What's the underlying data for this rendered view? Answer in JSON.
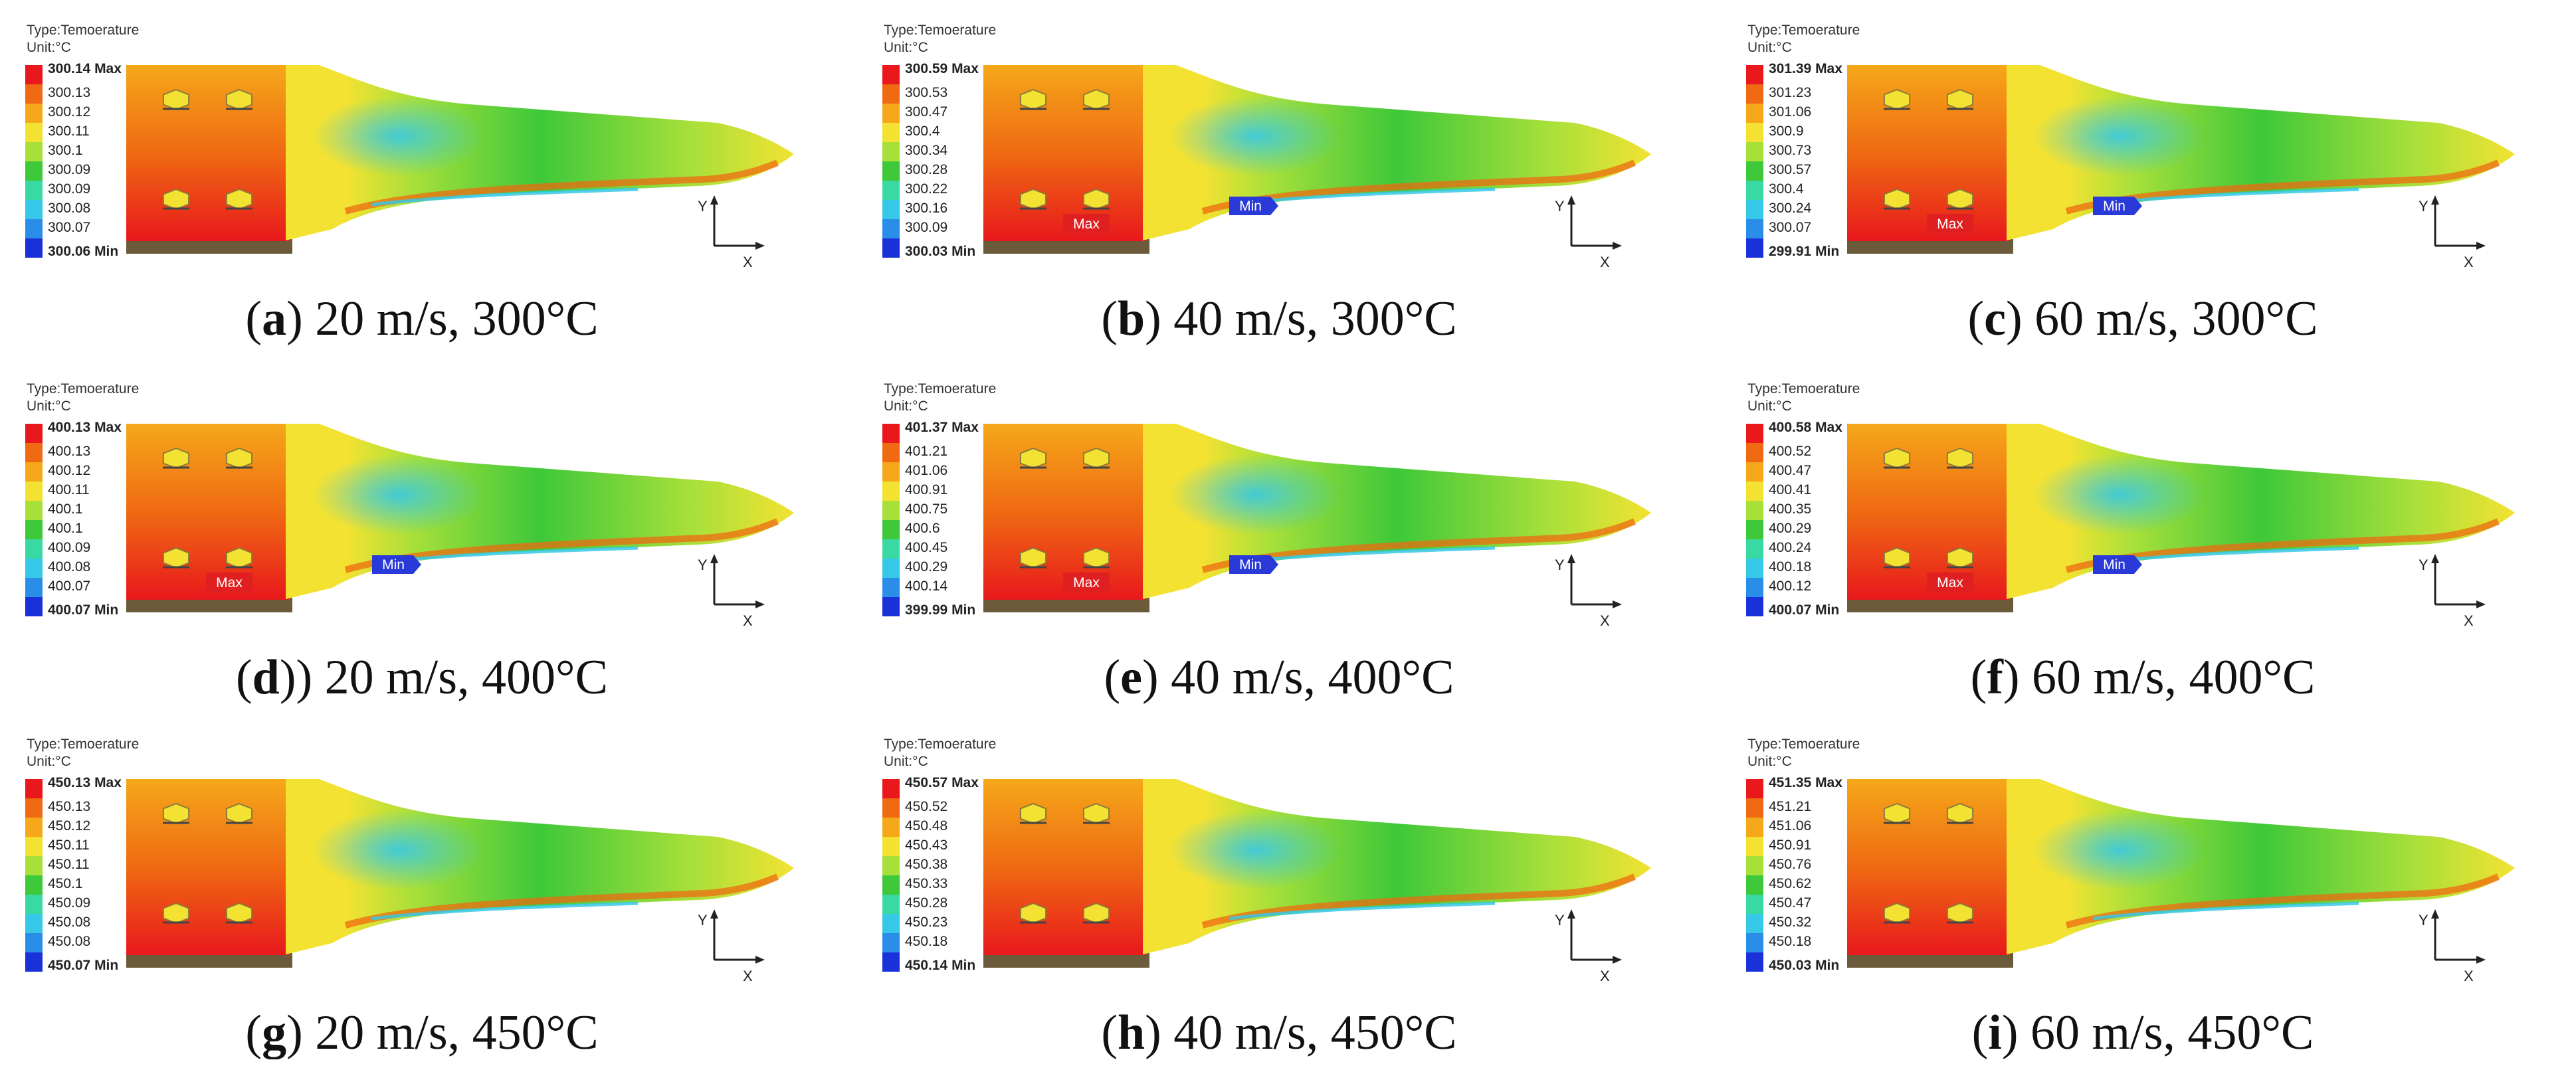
{
  "legend_type_label": "Type:Temoerature",
  "legend_unit_label": "Unit:°C",
  "legend_colors": [
    "#e8181c",
    "#ef6a12",
    "#f5a81a",
    "#f3e232",
    "#a8e03a",
    "#3ec83a",
    "#3ad8a2",
    "#36c8e6",
    "#2a8ee8",
    "#1a30d8"
  ],
  "axis_labels": {
    "y": "Y",
    "x": "X"
  },
  "panels": [
    {
      "letter": "a",
      "caption_pre": "(",
      "caption_post": ") 20 m/s, 300°C",
      "ticks": [
        "300.14",
        "300.13",
        "300.12",
        "300.11",
        "300.1",
        "300.09",
        "300.09",
        "300.08",
        "300.07",
        "300.06"
      ],
      "max_suffix": "Max",
      "min_suffix": "Min",
      "show_max_tag": false,
      "show_min_tag": false
    },
    {
      "letter": "b",
      "caption_pre": "(",
      "caption_post": ") 40 m/s, 300°C",
      "ticks": [
        "300.59",
        "300.53",
        "300.47",
        "300.4",
        "300.34",
        "300.28",
        "300.22",
        "300.16",
        "300.09",
        "300.03"
      ],
      "max_suffix": "Max",
      "min_suffix": "Min",
      "show_max_tag": true,
      "show_min_tag": true
    },
    {
      "letter": "c",
      "caption_pre": "(",
      "caption_post": ") 60 m/s, 300°C",
      "ticks": [
        "301.39",
        "301.23",
        "301.06",
        "300.9",
        "300.73",
        "300.57",
        "300.4",
        "300.24",
        "300.07",
        "299.91"
      ],
      "max_suffix": "Max",
      "min_suffix": "Min",
      "show_max_tag": true,
      "show_min_tag": true
    },
    {
      "letter": "d",
      "caption_pre": "(",
      "caption_post": ")) 20 m/s, 400°C",
      "ticks": [
        "400.13",
        "400.13",
        "400.12",
        "400.11",
        "400.1",
        "400.1",
        "400.09",
        "400.08",
        "400.07",
        "400.07"
      ],
      "max_suffix": "Max",
      "min_suffix": "Min",
      "show_max_tag": true,
      "show_min_tag": true
    },
    {
      "letter": "e",
      "caption_pre": "(",
      "caption_post": ") 40 m/s, 400°C",
      "ticks": [
        "401.37",
        "401.21",
        "401.06",
        "400.91",
        "400.75",
        "400.6",
        "400.45",
        "400.29",
        "400.14",
        "399.99"
      ],
      "max_suffix": "Max",
      "min_suffix": "Min",
      "show_max_tag": true,
      "show_min_tag": true
    },
    {
      "letter": "f",
      "caption_pre": "(",
      "caption_post": ") 60 m/s, 400°C",
      "ticks": [
        "400.58",
        "400.52",
        "400.47",
        "400.41",
        "400.35",
        "400.29",
        "400.24",
        "400.18",
        "400.12",
        "400.07"
      ],
      "max_suffix": "Max",
      "min_suffix": "Min",
      "show_max_tag": true,
      "show_min_tag": true
    },
    {
      "letter": "g",
      "caption_pre": "(",
      "caption_post": ") 20 m/s, 450°C",
      "ticks": [
        "450.13",
        "450.13",
        "450.12",
        "450.11",
        "450.11",
        "450.1",
        "450.09",
        "450.08",
        "450.08",
        "450.07"
      ],
      "max_suffix": "Max",
      "min_suffix": "Min",
      "show_max_tag": false,
      "show_min_tag": false
    },
    {
      "letter": "h",
      "caption_pre": "(",
      "caption_post": ") 40 m/s, 450°C",
      "ticks": [
        "450.57",
        "450.52",
        "450.48",
        "450.43",
        "450.38",
        "450.33",
        "450.28",
        "450.23",
        "450.18",
        "450.14"
      ],
      "max_suffix": "Max",
      "min_suffix": "Min",
      "show_max_tag": false,
      "show_min_tag": false
    },
    {
      "letter": "i",
      "caption_pre": "(",
      "caption_post": ") 60 m/s, 450°C",
      "ticks": [
        "451.35",
        "451.21",
        "451.06",
        "450.91",
        "450.76",
        "450.62",
        "450.47",
        "450.32",
        "450.18",
        "450.03"
      ],
      "max_suffix": "Max",
      "min_suffix": "Min",
      "show_max_tag": false,
      "show_min_tag": false
    }
  ]
}
